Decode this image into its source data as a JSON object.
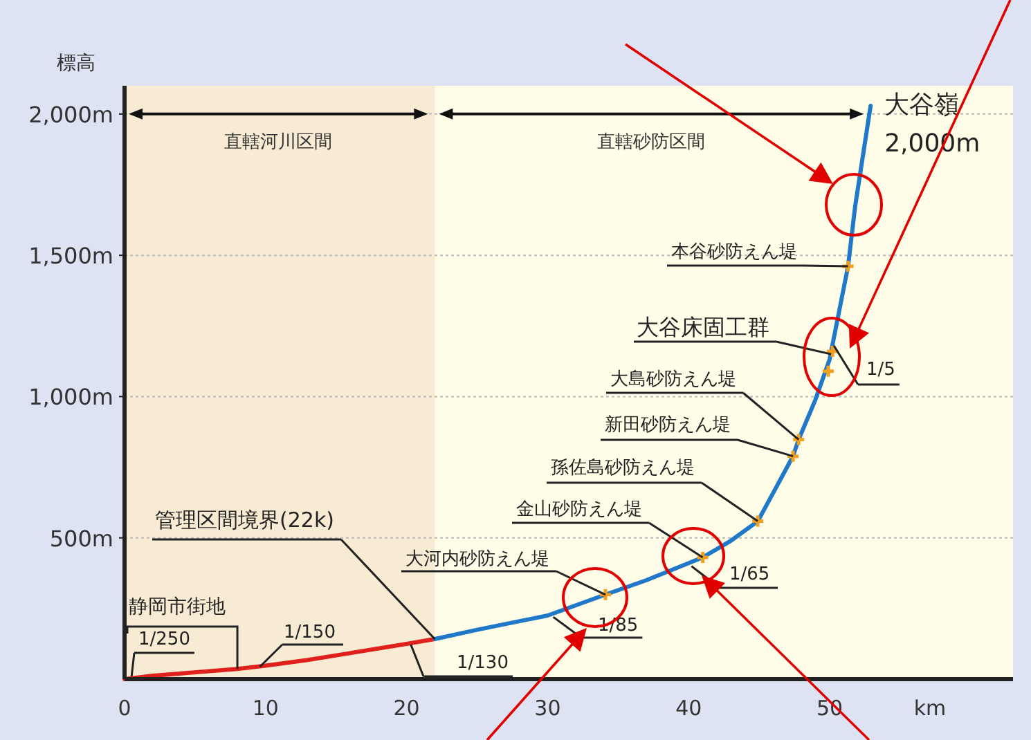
{
  "chart_data": {
    "type": "line",
    "ylabel": "標高",
    "xlabel": "km",
    "xlim": [
      0,
      63
    ],
    "ylim": [
      0,
      2100
    ],
    "xticks": [
      0,
      10,
      20,
      30,
      40,
      50
    ],
    "yticks": [
      {
        "value": 500,
        "label": "500m"
      },
      {
        "value": 1000,
        "label": "1,000m"
      },
      {
        "value": 1500,
        "label": "1,500m"
      },
      {
        "value": 2000,
        "label": "2,000m"
      }
    ],
    "grid": "y",
    "series": [
      {
        "color": "#e0201c",
        "x": [
          0,
          2,
          4,
          6,
          8,
          10,
          13,
          16,
          20,
          22
        ],
        "values": [
          0,
          12,
          20,
          28,
          36,
          48,
          68,
          92,
          125,
          142
        ]
      },
      {
        "color": "#1f78c8",
        "x": [
          22,
          25,
          30,
          34.1,
          37,
          41,
          43,
          44.9,
          46,
          47.4,
          47.8,
          49,
          50,
          51.3,
          51.8,
          52.9
        ],
        "values": [
          142,
          175,
          225,
          299,
          350,
          431,
          490,
          559,
          660,
          789,
          848,
          990,
          1132,
          1461,
          1672,
          2029
        ]
      },
      {
        "type": "scatter",
        "marker": "cross",
        "color": "#f0a020",
        "x": [
          34.1,
          41,
          44.9,
          47.4,
          47.8,
          49.9,
          50.2,
          51.3
        ],
        "values": [
          299,
          431,
          559,
          789,
          848,
          1090,
          1160,
          1461
        ]
      }
    ],
    "bands": [
      {
        "axis": "x",
        "from": 0,
        "to": 22,
        "label": "直轄河川区間",
        "color": "#f8ebd3"
      },
      {
        "axis": "x",
        "from": 22,
        "to": 63,
        "label": "直轄砂防区間",
        "color": "#fffde8"
      }
    ],
    "annotations": [
      {
        "text": "大谷嶺 2,000m",
        "x": 52.9,
        "y": 2029
      },
      {
        "text": "本谷砂防えん堤",
        "x": 51.3,
        "y": 1461
      },
      {
        "text": "大谷床固工群",
        "x": 50.1,
        "y": 1150
      },
      {
        "text": "大島砂防えん堤",
        "x": 47.8,
        "y": 848
      },
      {
        "text": "新田砂防えん堤",
        "x": 47.4,
        "y": 789
      },
      {
        "text": "孫佐島砂防えん堤",
        "x": 44.9,
        "y": 559
      },
      {
        "text": "金山砂防えん堤",
        "x": 41,
        "y": 431
      },
      {
        "text": "大河内砂防えん堤",
        "x": 34.1,
        "y": 299
      },
      {
        "text": "管理区間境界(22k)",
        "x": 22,
        "y": 142
      },
      {
        "text": "静岡市街地",
        "x": 8,
        "y": 36
      },
      {
        "text": "1/250",
        "x": 0.5,
        "y": 10
      },
      {
        "text": "1/150",
        "x": 9.6,
        "y": 44
      },
      {
        "text": "1/130",
        "x": 20.3,
        "y": 122
      },
      {
        "text": "1/85",
        "x": 30.4,
        "y": 220
      },
      {
        "text": "1/65",
        "x": 40.2,
        "y": 400
      },
      {
        "text": "1/5",
        "x": 50.3,
        "y": 1180
      }
    ]
  }
}
